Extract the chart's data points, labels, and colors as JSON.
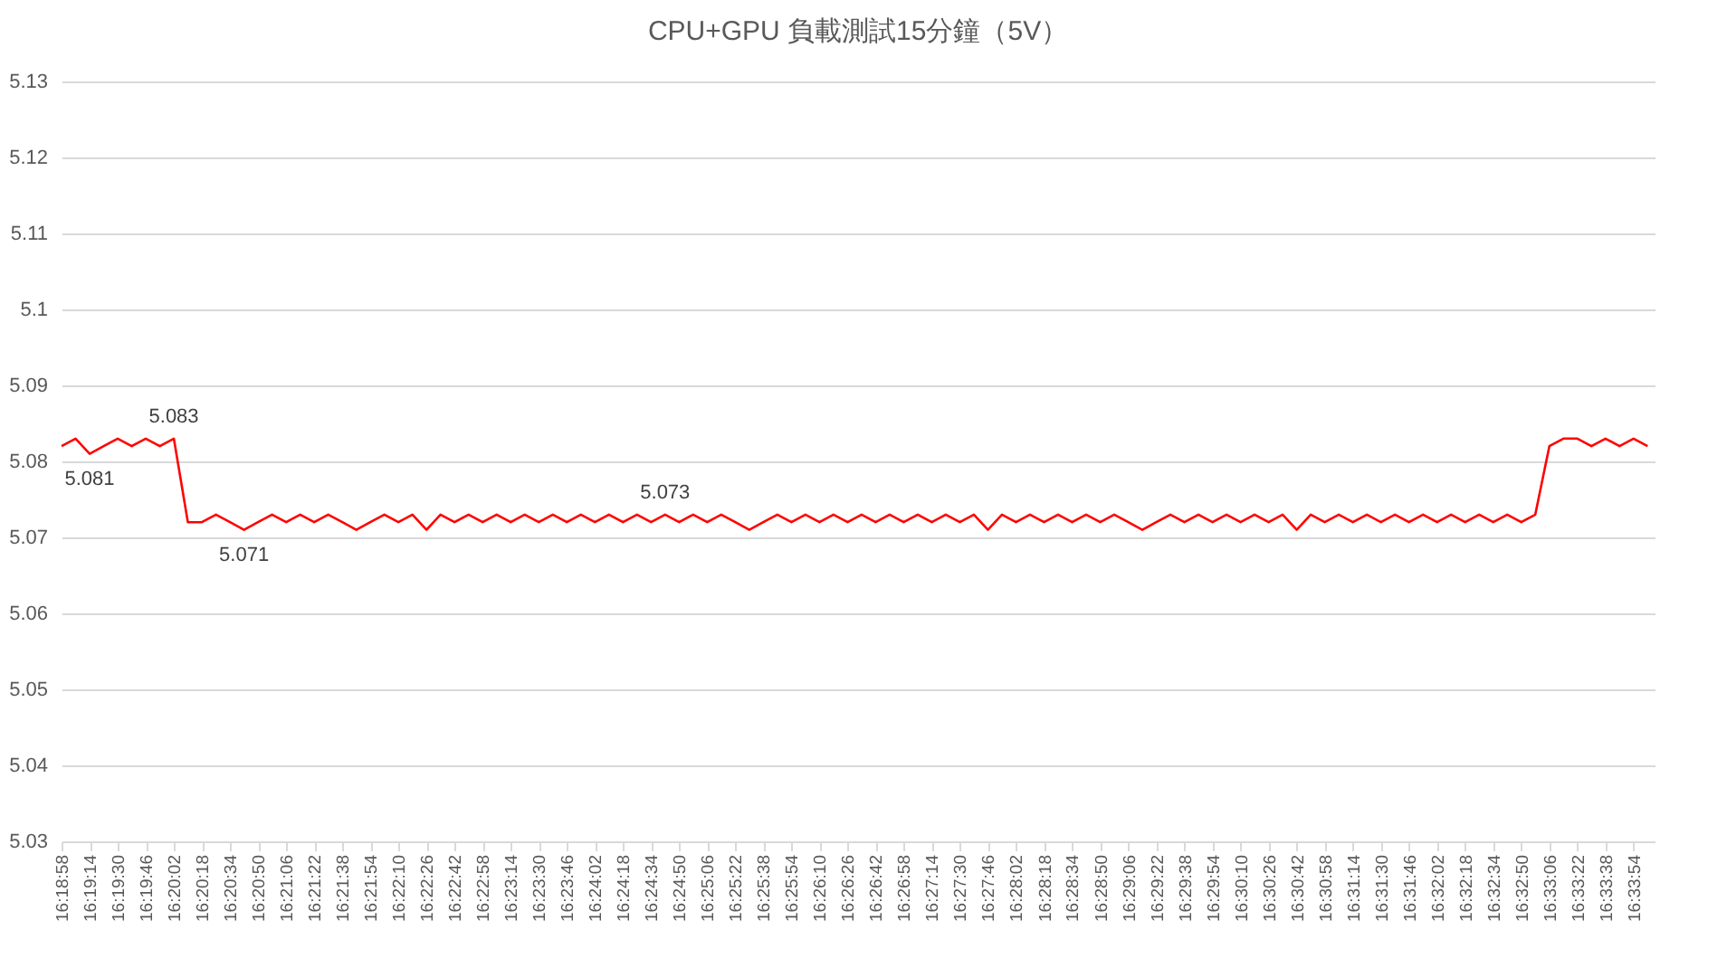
{
  "chart_data": {
    "type": "line",
    "title": "CPU+GPU 負載測試15分鐘（5V）",
    "grid": "y",
    "xlim": [
      16.31611,
      16.56833
    ],
    "ylim": [
      5.03,
      5.13
    ],
    "yticks": [
      5.03,
      5.04,
      5.05,
      5.06,
      5.07,
      5.08,
      5.09,
      5.1,
      5.11,
      5.12,
      5.13
    ],
    "xticks": [
      {
        "value": 16.31611,
        "label": "16:18:58"
      },
      {
        "value": 16.32056,
        "label": "16:19:14"
      },
      {
        "value": 16.325,
        "label": "16:19:30"
      },
      {
        "value": 16.32944,
        "label": "16:19:46"
      },
      {
        "value": 16.33389,
        "label": "16:20:02"
      },
      {
        "value": 16.33833,
        "label": "16:20:18"
      },
      {
        "value": 16.34278,
        "label": "16:20:34"
      },
      {
        "value": 16.34722,
        "label": "16:20:50"
      },
      {
        "value": 16.35167,
        "label": "16:21:06"
      },
      {
        "value": 16.35611,
        "label": "16:21:22"
      },
      {
        "value": 16.36056,
        "label": "16:21:38"
      },
      {
        "value": 16.365,
        "label": "16:21:54"
      },
      {
        "value": 16.36944,
        "label": "16:22:10"
      },
      {
        "value": 16.37389,
        "label": "16:22:26"
      },
      {
        "value": 16.37833,
        "label": "16:22:42"
      },
      {
        "value": 16.38278,
        "label": "16:22:58"
      },
      {
        "value": 16.38722,
        "label": "16:23:14"
      },
      {
        "value": 16.39167,
        "label": "16:23:30"
      },
      {
        "value": 16.39611,
        "label": "16:23:46"
      },
      {
        "value": 16.40056,
        "label": "16:24:02"
      },
      {
        "value": 16.405,
        "label": "16:24:18"
      },
      {
        "value": 16.40944,
        "label": "16:24:34"
      },
      {
        "value": 16.41389,
        "label": "16:24:50"
      },
      {
        "value": 16.41833,
        "label": "16:25:06"
      },
      {
        "value": 16.42278,
        "label": "16:25:22"
      },
      {
        "value": 16.42722,
        "label": "16:25:38"
      },
      {
        "value": 16.43167,
        "label": "16:25:54"
      },
      {
        "value": 16.43611,
        "label": "16:26:10"
      },
      {
        "value": 16.44056,
        "label": "16:26:26"
      },
      {
        "value": 16.445,
        "label": "16:26:42"
      },
      {
        "value": 16.44944,
        "label": "16:26:58"
      },
      {
        "value": 16.45389,
        "label": "16:27:14"
      },
      {
        "value": 16.45833,
        "label": "16:27:30"
      },
      {
        "value": 16.46278,
        "label": "16:27:46"
      },
      {
        "value": 16.46722,
        "label": "16:28:02"
      },
      {
        "value": 16.47167,
        "label": "16:28:18"
      },
      {
        "value": 16.47611,
        "label": "16:28:34"
      },
      {
        "value": 16.48056,
        "label": "16:28:50"
      },
      {
        "value": 16.485,
        "label": "16:29:06"
      },
      {
        "value": 16.48944,
        "label": "16:29:22"
      },
      {
        "value": 16.49389,
        "label": "16:29:38"
      },
      {
        "value": 16.49833,
        "label": "16:29:54"
      },
      {
        "value": 16.50278,
        "label": "16:30:10"
      },
      {
        "value": 16.50722,
        "label": "16:30:26"
      },
      {
        "value": 16.51167,
        "label": "16:30:42"
      },
      {
        "value": 16.51611,
        "label": "16:30:58"
      },
      {
        "value": 16.52056,
        "label": "16:31:14"
      },
      {
        "value": 16.525,
        "label": "16:31:30"
      },
      {
        "value": 16.52944,
        "label": "16:31:46"
      },
      {
        "value": 16.53389,
        "label": "16:32:02"
      },
      {
        "value": 16.53833,
        "label": "16:32:18"
      },
      {
        "value": 16.54278,
        "label": "16:32:34"
      },
      {
        "value": 16.54722,
        "label": "16:32:50"
      },
      {
        "value": 16.55167,
        "label": "16:33:06"
      },
      {
        "value": 16.55611,
        "label": "16:33:22"
      },
      {
        "value": 16.56056,
        "label": "16:33:38"
      },
      {
        "value": 16.565,
        "label": "16:33:54"
      }
    ],
    "x": [
      16.31611,
      16.31833,
      16.32056,
      16.32278,
      16.325,
      16.32722,
      16.32944,
      16.33167,
      16.33389,
      16.33611,
      16.33833,
      16.34056,
      16.34278,
      16.345,
      16.34722,
      16.34944,
      16.35167,
      16.35389,
      16.35611,
      16.35833,
      16.36056,
      16.36278,
      16.365,
      16.36722,
      16.36944,
      16.37167,
      16.37389,
      16.37611,
      16.37833,
      16.38056,
      16.38278,
      16.385,
      16.38722,
      16.38944,
      16.39167,
      16.39389,
      16.39611,
      16.39833,
      16.40056,
      16.40278,
      16.405,
      16.40722,
      16.40944,
      16.41167,
      16.41389,
      16.41611,
      16.41833,
      16.42056,
      16.42278,
      16.425,
      16.42722,
      16.42944,
      16.43167,
      16.43389,
      16.43611,
      16.43833,
      16.44056,
      16.44278,
      16.445,
      16.44722,
      16.44944,
      16.45167,
      16.45389,
      16.45611,
      16.45833,
      16.46056,
      16.46278,
      16.465,
      16.46722,
      16.46944,
      16.47167,
      16.47389,
      16.47611,
      16.47833,
      16.48056,
      16.48278,
      16.485,
      16.48722,
      16.48944,
      16.49167,
      16.49389,
      16.49611,
      16.49833,
      16.50056,
      16.50278,
      16.505,
      16.50722,
      16.50944,
      16.51167,
      16.51389,
      16.51611,
      16.51833,
      16.52056,
      16.52278,
      16.525,
      16.52722,
      16.52944,
      16.53167,
      16.53389,
      16.53611,
      16.53833,
      16.54056,
      16.54278,
      16.545,
      16.54722,
      16.54944,
      16.55167,
      16.55389,
      16.55611,
      16.55833,
      16.56056,
      16.56278,
      16.565,
      16.56722
    ],
    "series": [
      {
        "color": "#ff0000",
        "values": [
          5.082,
          5.083,
          5.081,
          5.082,
          5.083,
          5.082,
          5.083,
          5.082,
          5.083,
          5.072,
          5.072,
          5.073,
          5.072,
          5.071,
          5.072,
          5.073,
          5.072,
          5.073,
          5.072,
          5.073,
          5.072,
          5.071,
          5.072,
          5.073,
          5.072,
          5.073,
          5.071,
          5.073,
          5.072,
          5.073,
          5.072,
          5.073,
          5.072,
          5.073,
          5.072,
          5.073,
          5.072,
          5.073,
          5.072,
          5.073,
          5.072,
          5.073,
          5.072,
          5.073,
          5.072,
          5.073,
          5.072,
          5.073,
          5.072,
          5.071,
          5.072,
          5.073,
          5.072,
          5.073,
          5.072,
          5.073,
          5.072,
          5.073,
          5.072,
          5.073,
          5.072,
          5.073,
          5.072,
          5.073,
          5.072,
          5.073,
          5.071,
          5.073,
          5.072,
          5.073,
          5.072,
          5.073,
          5.072,
          5.073,
          5.072,
          5.073,
          5.072,
          5.071,
          5.072,
          5.073,
          5.072,
          5.073,
          5.072,
          5.073,
          5.072,
          5.073,
          5.072,
          5.073,
          5.071,
          5.073,
          5.072,
          5.073,
          5.072,
          5.073,
          5.072,
          5.073,
          5.072,
          5.073,
          5.072,
          5.073,
          5.072,
          5.073,
          5.072,
          5.073,
          5.072,
          5.073,
          5.082,
          5.083,
          5.083,
          5.082,
          5.083,
          5.082,
          5.083,
          5.082
        ]
      }
    ],
    "annotations": [
      {
        "text": "5.081",
        "x": 16.32056,
        "y": 5.081
      },
      {
        "text": "5.083",
        "x": 16.33389,
        "y": 5.083
      },
      {
        "text": "5.071",
        "x": 16.345,
        "y": 5.071
      },
      {
        "text": "5.073",
        "x": 16.41167,
        "y": 5.073
      }
    ]
  }
}
